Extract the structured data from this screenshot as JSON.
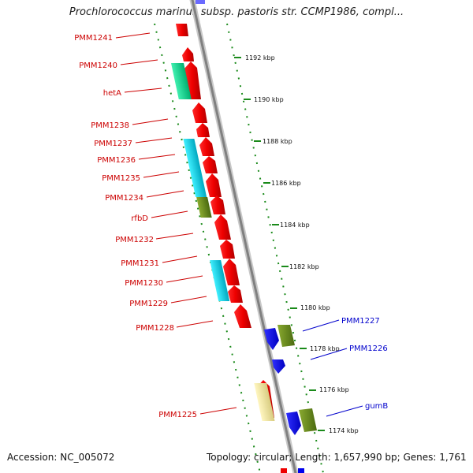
{
  "title": "Prochlorococcus marinus subsp. pastoris str. CCMP1986, compl...",
  "footer": {
    "accession": "Accession: NC_005072",
    "info": "Topology: circular; Length: 1,657,990 bp; Genes: 1,761"
  },
  "scale_labels": [
    "1192 kbp",
    "1190 kbp",
    "1188 kbp",
    "1186 kbp",
    "1184 kbp",
    "1182 kbp",
    "1180 kbp",
    "1178 kbp",
    "1176 kbp",
    "1174 kbp"
  ],
  "left_genes": [
    "PMM1241",
    "PMM1240",
    "hetA",
    "PMM1238",
    "PMM1237",
    "PMM1236",
    "PMM1235",
    "PMM1234",
    "rfbD",
    "PMM1232",
    "PMM1231",
    "PMM1230",
    "PMM1229",
    "PMM1228",
    "PMM1225"
  ],
  "right_genes": [
    "PMM1227",
    "PMM1226",
    "gumB"
  ],
  "colors": {
    "forward_cds": "#ee0000",
    "reverse_cds": "#0000ee",
    "cog_green": "#00e090",
    "cog_cyan": "#00d8e8",
    "cog_olive": "#6a8a20",
    "cog_yellow": "#f0e6a0",
    "backbone": "#888888",
    "left_label": "#cc0000",
    "right_label": "#0000cc",
    "tick": "#1a8a1a"
  }
}
